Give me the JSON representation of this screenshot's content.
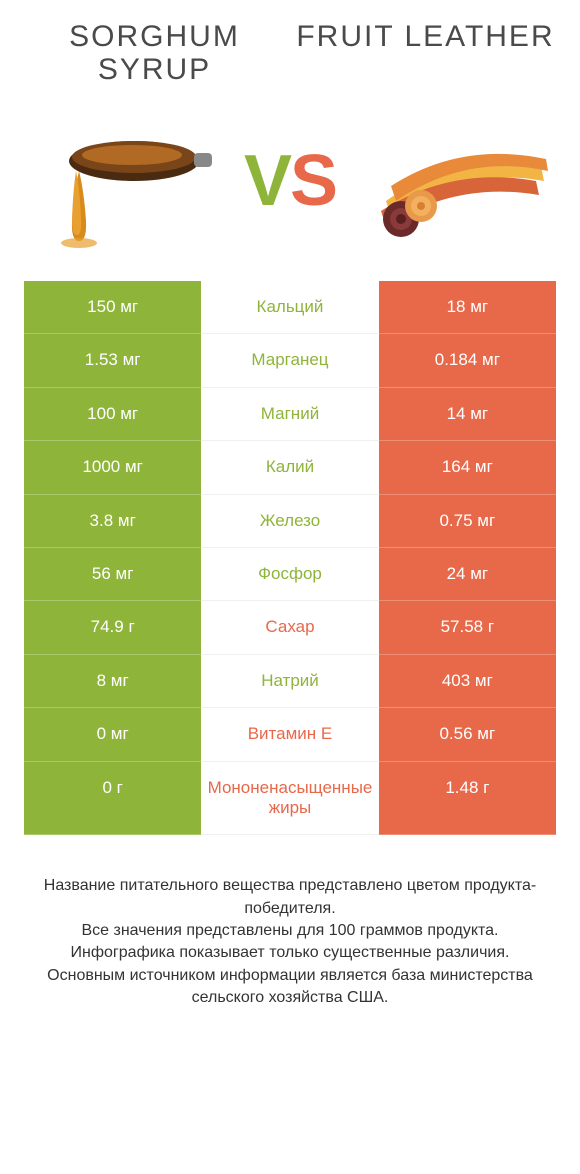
{
  "colors": {
    "left": "#8fb43a",
    "right": "#e8684a",
    "vs_v": "#8fb43a",
    "vs_s": "#e8684a",
    "background": "#ffffff",
    "text": "#333333"
  },
  "typography": {
    "title_fontsize": 30,
    "cell_fontsize": 17,
    "footer_fontsize": 16,
    "vs_fontsize": 72
  },
  "left_product": {
    "name": "SORGHUM SYRUP"
  },
  "right_product": {
    "name": "FRUIT LEATHER"
  },
  "vs": {
    "v": "V",
    "s": "S"
  },
  "rows": [
    {
      "left": "150 мг",
      "label": "Кальций",
      "right": "18 мг",
      "winner": "left"
    },
    {
      "left": "1.53 мг",
      "label": "Марганец",
      "right": "0.184 мг",
      "winner": "left"
    },
    {
      "left": "100 мг",
      "label": "Магний",
      "right": "14 мг",
      "winner": "left"
    },
    {
      "left": "1000 мг",
      "label": "Калий",
      "right": "164 мг",
      "winner": "left"
    },
    {
      "left": "3.8 мг",
      "label": "Железо",
      "right": "0.75 мг",
      "winner": "left"
    },
    {
      "left": "56 мг",
      "label": "Фосфор",
      "right": "24 мг",
      "winner": "left"
    },
    {
      "left": "74.9 г",
      "label": "Сахар",
      "right": "57.58 г",
      "winner": "right"
    },
    {
      "left": "8 мг",
      "label": "Натрий",
      "right": "403 мг",
      "winner": "left"
    },
    {
      "left": "0 мг",
      "label": "Витамин E",
      "right": "0.56 мг",
      "winner": "right"
    },
    {
      "left": "0 г",
      "label": "Мононенасыщенные жиры",
      "right": "1.48 г",
      "winner": "right"
    }
  ],
  "footer": {
    "line1": "Название питательного вещества представлено цветом продукта-победителя.",
    "line2": "Все значения представлены для 100 граммов продукта.",
    "line3": "Инфографика показывает только существенные различия.",
    "line4": "Основным источником информации является база министерства сельского хозяйства США."
  }
}
